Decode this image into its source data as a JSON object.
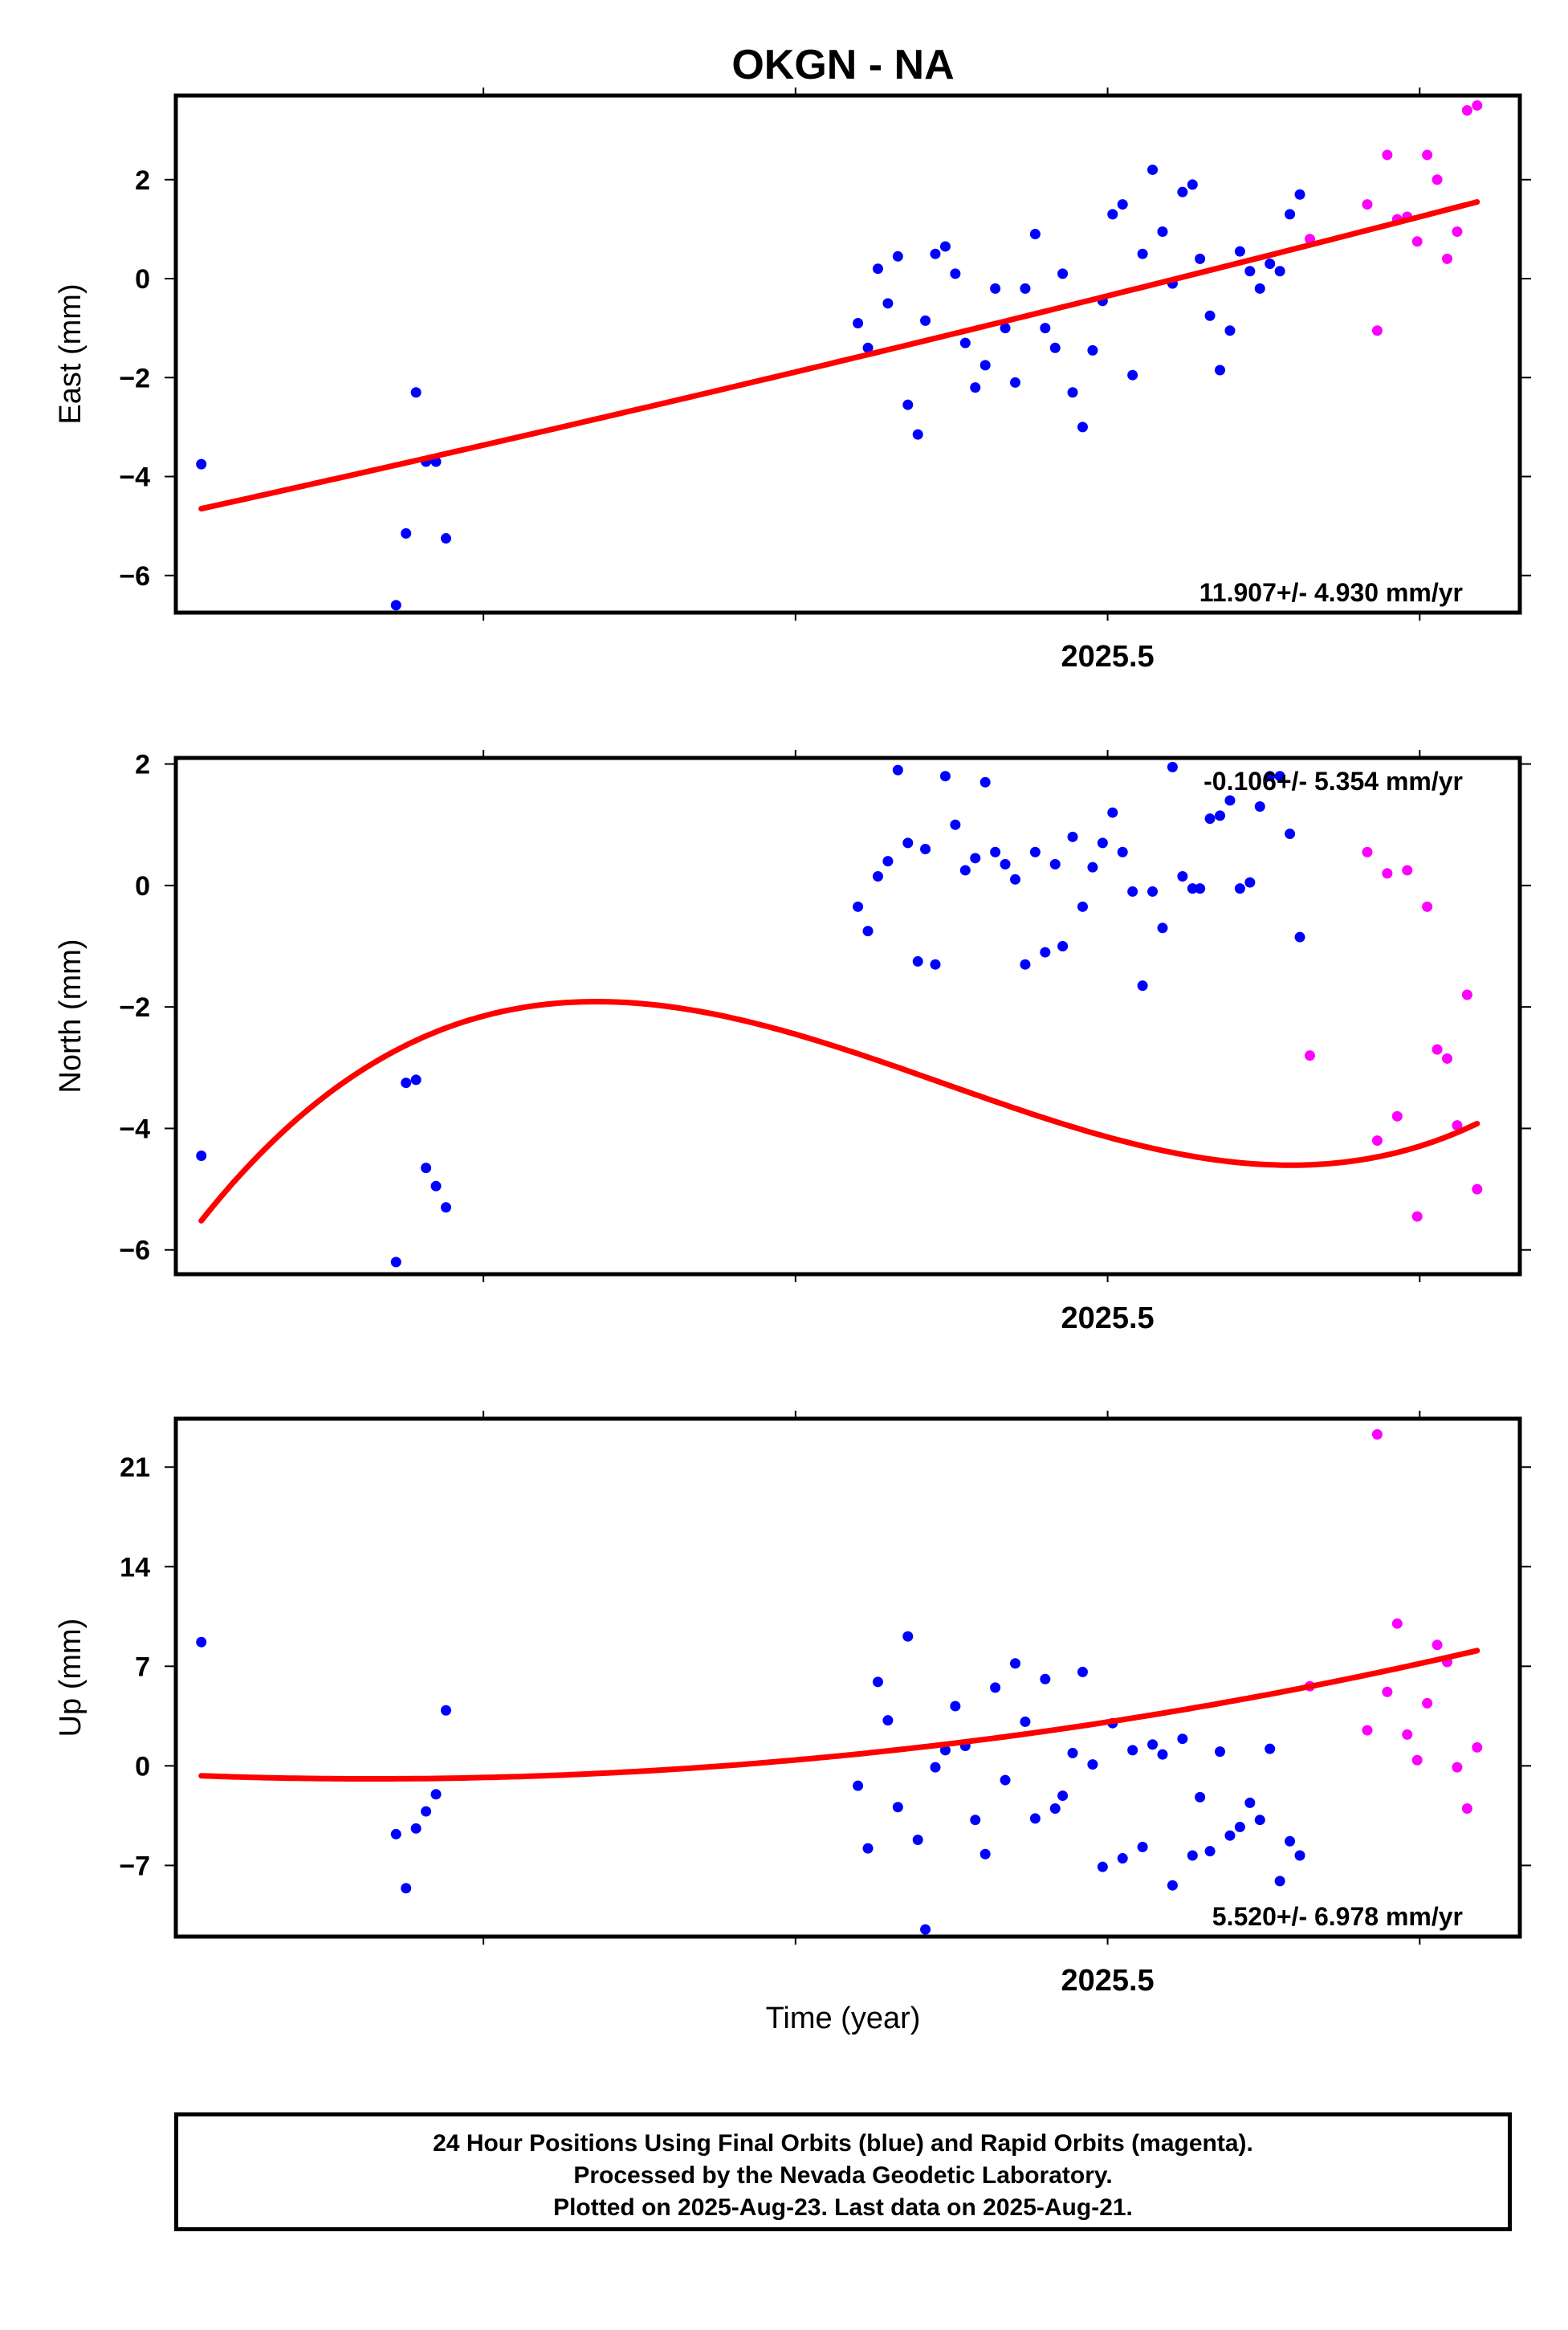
{
  "title": "OKGN - NA",
  "xlabel": "Time (year)",
  "footer": {
    "line1": "24 Hour Positions Using Final Orbits (blue) and Rapid Orbits (magenta).",
    "line2": "Processed by the Nevada Geodetic Laboratory.",
    "line3": "Plotted on 2025-Aug-23. Last data on 2025-Aug-21."
  },
  "colors": {
    "final": "#0000ff",
    "rapid": "#ff00ff",
    "fit": "#ff0000"
  },
  "chart_data": [
    {
      "type": "scatter",
      "ylabel": "East (mm)",
      "rate_label": "11.907+/- 4.930 mm/yr",
      "xlim": [
        2025.1268,
        2025.6651
      ],
      "ylim": [
        -6.75,
        3.7
      ],
      "x_ticks": [
        2025.5
      ],
      "x_tick_labels": [
        "2025.5"
      ],
      "y_ticks": [
        -6,
        -4,
        -2,
        0,
        2
      ],
      "y_tick_labels": [
        "−6",
        "−4",
        "−2",
        "0",
        "2"
      ],
      "series": [
        {
          "points": [
            [
              2025.137,
              -3.75
            ],
            [
              2025.215,
              -6.6
            ],
            [
              2025.219,
              -5.15
            ],
            [
              2025.223,
              -2.3
            ],
            [
              2025.227,
              -3.7
            ],
            [
              2025.231,
              -3.7
            ],
            [
              2025.235,
              -5.25
            ],
            [
              2025.4,
              -0.9
            ],
            [
              2025.404,
              -1.4
            ],
            [
              2025.408,
              0.2
            ],
            [
              2025.412,
              -0.5
            ],
            [
              2025.416,
              0.45
            ],
            [
              2025.42,
              -2.55
            ],
            [
              2025.424,
              -3.15
            ],
            [
              2025.427,
              -0.85
            ],
            [
              2025.431,
              0.5
            ],
            [
              2025.435,
              0.65
            ],
            [
              2025.439,
              0.1
            ],
            [
              2025.443,
              -1.3
            ],
            [
              2025.447,
              -2.2
            ],
            [
              2025.451,
              -1.75
            ],
            [
              2025.455,
              -0.2
            ],
            [
              2025.459,
              -1.0
            ],
            [
              2025.463,
              -2.1
            ],
            [
              2025.467,
              -0.2
            ],
            [
              2025.471,
              0.9
            ],
            [
              2025.475,
              -1.0
            ],
            [
              2025.479,
              -1.4
            ],
            [
              2025.482,
              0.1
            ],
            [
              2025.486,
              -2.3
            ],
            [
              2025.49,
              -3.0
            ],
            [
              2025.494,
              -1.45
            ],
            [
              2025.498,
              -0.45
            ],
            [
              2025.502,
              1.3
            ],
            [
              2025.506,
              1.5
            ],
            [
              2025.51,
              -1.95
            ],
            [
              2025.514,
              0.5
            ],
            [
              2025.518,
              2.2
            ],
            [
              2025.522,
              0.95
            ],
            [
              2025.526,
              -0.1
            ],
            [
              2025.53,
              1.75
            ],
            [
              2025.534,
              1.9
            ],
            [
              2025.537,
              0.4
            ],
            [
              2025.541,
              -0.75
            ],
            [
              2025.545,
              -1.85
            ],
            [
              2025.549,
              -1.05
            ],
            [
              2025.553,
              0.55
            ],
            [
              2025.557,
              0.15
            ],
            [
              2025.561,
              -0.2
            ],
            [
              2025.565,
              0.3
            ],
            [
              2025.569,
              0.15
            ],
            [
              2025.573,
              1.3
            ],
            [
              2025.577,
              1.7
            ]
          ],
          "type": "final"
        },
        {
          "points": [
            [
              2025.581,
              0.8
            ],
            [
              2025.604,
              1.5
            ],
            [
              2025.608,
              -1.05
            ],
            [
              2025.612,
              2.5
            ],
            [
              2025.616,
              1.2
            ],
            [
              2025.62,
              1.25
            ],
            [
              2025.624,
              0.75
            ],
            [
              2025.628,
              2.5
            ],
            [
              2025.632,
              2.0
            ],
            [
              2025.636,
              0.4
            ],
            [
              2025.64,
              0.95
            ],
            [
              2025.644,
              3.4
            ],
            [
              2025.648,
              3.5
            ]
          ],
          "type": "rapid"
        }
      ],
      "fit": {
        "from": 2025.137,
        "to": 2025.648,
        "coef": [
          -4.65,
          5.7,
          0.5,
          0
        ]
      }
    },
    {
      "type": "scatter",
      "ylabel": "North (mm)",
      "rate_label": "-0.106+/- 5.354 mm/yr",
      "xlim": [
        2025.1268,
        2025.6651
      ],
      "ylim": [
        -6.4,
        2.1
      ],
      "x_ticks": [
        2025.5
      ],
      "x_tick_labels": [
        "2025.5"
      ],
      "y_ticks": [
        -6,
        -4,
        -2,
        0,
        2
      ],
      "y_tick_labels": [
        "−6",
        "−4",
        "−2",
        "0",
        "2"
      ],
      "series": [
        {
          "points": [
            [
              2025.137,
              -4.45
            ],
            [
              2025.215,
              -6.2
            ],
            [
              2025.219,
              -3.25
            ],
            [
              2025.223,
              -3.2
            ],
            [
              2025.227,
              -4.65
            ],
            [
              2025.231,
              -4.95
            ],
            [
              2025.235,
              -5.3
            ],
            [
              2025.4,
              -0.35
            ],
            [
              2025.404,
              -0.75
            ],
            [
              2025.408,
              0.15
            ],
            [
              2025.412,
              0.4
            ],
            [
              2025.416,
              1.9
            ],
            [
              2025.42,
              0.7
            ],
            [
              2025.424,
              -1.25
            ],
            [
              2025.427,
              0.6
            ],
            [
              2025.431,
              -1.3
            ],
            [
              2025.435,
              1.8
            ],
            [
              2025.439,
              1.0
            ],
            [
              2025.443,
              0.25
            ],
            [
              2025.447,
              0.45
            ],
            [
              2025.451,
              1.7
            ],
            [
              2025.455,
              0.55
            ],
            [
              2025.459,
              0.35
            ],
            [
              2025.463,
              0.1
            ],
            [
              2025.467,
              -1.3
            ],
            [
              2025.471,
              0.55
            ],
            [
              2025.475,
              -1.1
            ],
            [
              2025.479,
              0.35
            ],
            [
              2025.482,
              -1.0
            ],
            [
              2025.486,
              0.8
            ],
            [
              2025.49,
              -0.35
            ],
            [
              2025.494,
              0.3
            ],
            [
              2025.498,
              0.7
            ],
            [
              2025.502,
              1.2
            ],
            [
              2025.506,
              0.55
            ],
            [
              2025.51,
              -0.1
            ],
            [
              2025.514,
              -1.65
            ],
            [
              2025.518,
              -0.1
            ],
            [
              2025.522,
              -0.7
            ],
            [
              2025.526,
              1.95
            ],
            [
              2025.53,
              0.15
            ],
            [
              2025.534,
              -0.05
            ],
            [
              2025.537,
              -0.05
            ],
            [
              2025.541,
              1.1
            ],
            [
              2025.545,
              1.15
            ],
            [
              2025.549,
              1.4
            ],
            [
              2025.553,
              -0.05
            ],
            [
              2025.557,
              0.05
            ],
            [
              2025.561,
              1.3
            ],
            [
              2025.565,
              1.8
            ],
            [
              2025.569,
              1.8
            ],
            [
              2025.573,
              0.85
            ],
            [
              2025.577,
              -0.85
            ]
          ],
          "type": "final"
        },
        {
          "points": [
            [
              2025.581,
              -2.8
            ],
            [
              2025.604,
              0.55
            ],
            [
              2025.608,
              -4.2
            ],
            [
              2025.612,
              0.2
            ],
            [
              2025.616,
              -3.8
            ],
            [
              2025.62,
              0.25
            ],
            [
              2025.624,
              -5.45
            ],
            [
              2025.628,
              -0.35
            ],
            [
              2025.632,
              -2.7
            ],
            [
              2025.636,
              -2.85
            ],
            [
              2025.64,
              -3.95
            ],
            [
              2025.644,
              -1.8
            ],
            [
              2025.648,
              -5.0
            ]
          ],
          "type": "rapid"
        }
      ],
      "fit": {
        "from": 2025.137,
        "to": 2025.648,
        "coef": [
          -5.52,
          26.5,
          -58.3,
          33.4
        ]
      }
    },
    {
      "type": "scatter",
      "ylabel": "Up (mm)",
      "rate_label": "5.520+/- 6.978 mm/yr",
      "xlim": [
        2025.1268,
        2025.6651
      ],
      "ylim": [
        -12.0,
        24.4
      ],
      "x_ticks": [
        2025.5
      ],
      "x_tick_labels": [
        "2025.5"
      ],
      "y_ticks": [
        -7,
        0,
        7,
        14,
        21
      ],
      "y_tick_labels": [
        "−7",
        "0",
        "7",
        "14",
        "21"
      ],
      "series": [
        {
          "points": [
            [
              2025.137,
              8.7
            ],
            [
              2025.215,
              -4.8
            ],
            [
              2025.219,
              -8.6
            ],
            [
              2025.223,
              -4.4
            ],
            [
              2025.227,
              -3.2
            ],
            [
              2025.231,
              -2.0
            ],
            [
              2025.235,
              3.9
            ],
            [
              2025.4,
              -1.4
            ],
            [
              2025.404,
              -5.8
            ],
            [
              2025.408,
              5.9
            ],
            [
              2025.412,
              3.2
            ],
            [
              2025.416,
              -2.9
            ],
            [
              2025.42,
              9.1
            ],
            [
              2025.424,
              -5.2
            ],
            [
              2025.427,
              -11.5
            ],
            [
              2025.431,
              -0.1
            ],
            [
              2025.435,
              1.1
            ],
            [
              2025.439,
              4.2
            ],
            [
              2025.443,
              1.4
            ],
            [
              2025.447,
              -3.8
            ],
            [
              2025.451,
              -6.2
            ],
            [
              2025.455,
              5.5
            ],
            [
              2025.459,
              -1.0
            ],
            [
              2025.463,
              7.2
            ],
            [
              2025.467,
              3.1
            ],
            [
              2025.471,
              -3.7
            ],
            [
              2025.475,
              6.1
            ],
            [
              2025.479,
              -3.0
            ],
            [
              2025.482,
              -2.1
            ],
            [
              2025.486,
              0.9
            ],
            [
              2025.49,
              6.6
            ],
            [
              2025.494,
              0.1
            ],
            [
              2025.498,
              -7.1
            ],
            [
              2025.502,
              3.0
            ],
            [
              2025.506,
              -6.5
            ],
            [
              2025.51,
              1.1
            ],
            [
              2025.514,
              -5.7
            ],
            [
              2025.518,
              1.5
            ],
            [
              2025.522,
              0.8
            ],
            [
              2025.526,
              -8.4
            ],
            [
              2025.53,
              1.9
            ],
            [
              2025.534,
              -6.3
            ],
            [
              2025.537,
              -2.2
            ],
            [
              2025.541,
              -6.0
            ],
            [
              2025.545,
              1.0
            ],
            [
              2025.549,
              -4.9
            ],
            [
              2025.553,
              -4.3
            ],
            [
              2025.557,
              -2.6
            ],
            [
              2025.561,
              -3.8
            ],
            [
              2025.565,
              1.2
            ],
            [
              2025.569,
              -8.1
            ],
            [
              2025.573,
              -5.3
            ],
            [
              2025.577,
              -6.3
            ]
          ],
          "type": "final"
        },
        {
          "points": [
            [
              2025.581,
              5.6
            ],
            [
              2025.604,
              2.5
            ],
            [
              2025.608,
              23.3
            ],
            [
              2025.612,
              5.2
            ],
            [
              2025.616,
              10.0
            ],
            [
              2025.62,
              2.2
            ],
            [
              2025.624,
              0.4
            ],
            [
              2025.628,
              4.4
            ],
            [
              2025.632,
              8.5
            ],
            [
              2025.636,
              7.3
            ],
            [
              2025.64,
              -0.1
            ],
            [
              2025.644,
              -3.0
            ],
            [
              2025.648,
              1.3
            ]
          ],
          "type": "rapid"
        }
      ],
      "fit": {
        "from": 2025.137,
        "to": 2025.648,
        "coef": [
          -0.7,
          -3.2,
          12.0,
          0
        ]
      }
    }
  ]
}
